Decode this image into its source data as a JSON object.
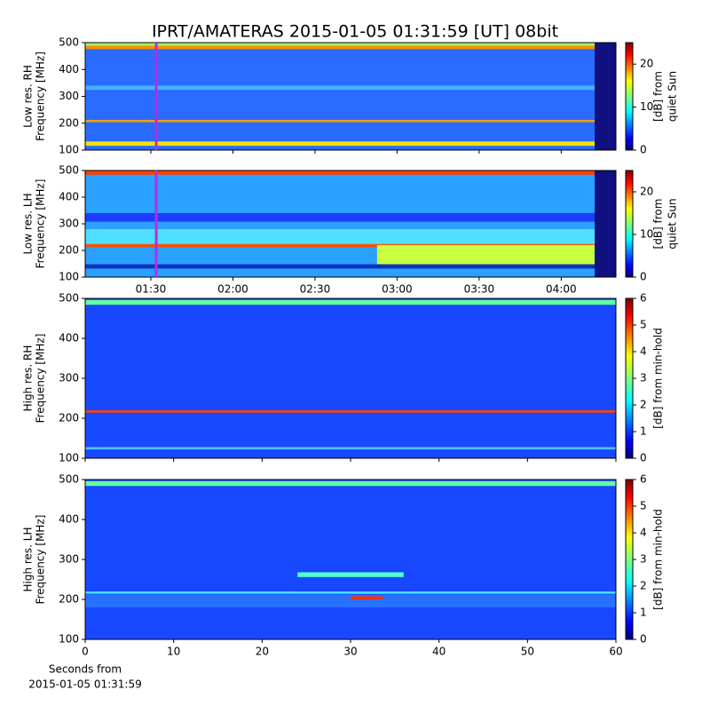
{
  "title": "IPRT/AMATERAS 2015-01-05 01:31:59 [UT]   08bit",
  "chart_data": [
    {
      "type": "heatmap",
      "ylabel": [
        "Low res. RH",
        "Frequency [MHz]"
      ],
      "ylim": [
        100,
        500
      ],
      "yticks": [
        100,
        200,
        300,
        400,
        500
      ],
      "colorbar_label": [
        "[dB] from",
        "quiet Sun"
      ],
      "clim": [
        0,
        25
      ],
      "cticks": [
        0,
        10,
        20
      ],
      "cursor_x": 91.98,
      "xlim": [
        66,
        260
      ]
    },
    {
      "type": "heatmap",
      "ylabel": [
        "Low res. LH",
        "Frequency [MHz]"
      ],
      "ylim": [
        100,
        500
      ],
      "yticks": [
        100,
        200,
        300,
        400,
        500
      ],
      "colorbar_label": [
        "[dB] from",
        "quiet Sun"
      ],
      "clim": [
        0,
        25
      ],
      "cticks": [
        0,
        10,
        20
      ],
      "cursor_x": 91.98,
      "xlim": [
        66,
        260
      ],
      "xticks": [
        {
          "value": 90,
          "label": "01:30"
        },
        {
          "value": 120,
          "label": "02:00"
        },
        {
          "value": 150,
          "label": "02:30"
        },
        {
          "value": 180,
          "label": "03:00"
        },
        {
          "value": 210,
          "label": "03:30"
        },
        {
          "value": 240,
          "label": "04:00"
        }
      ]
    },
    {
      "type": "heatmap",
      "ylabel": [
        "High res. RH",
        "Frequency [MHz]"
      ],
      "ylim": [
        100,
        500
      ],
      "yticks": [
        100,
        200,
        300,
        400,
        500
      ],
      "colorbar_label": [
        "[dB] from min-hold"
      ],
      "clim": [
        0,
        6
      ],
      "cticks": [
        0,
        1,
        2,
        3,
        4,
        5,
        6
      ],
      "xlim": [
        0,
        60
      ]
    },
    {
      "type": "heatmap",
      "ylabel": [
        "High res. LH",
        "Frequency [MHz]"
      ],
      "ylim": [
        100,
        500
      ],
      "yticks": [
        100,
        200,
        300,
        400,
        500
      ],
      "colorbar_label": [
        "[dB] from min-hold"
      ],
      "clim": [
        0,
        6
      ],
      "cticks": [
        0,
        1,
        2,
        3,
        4,
        5,
        6
      ],
      "xlim": [
        0,
        60
      ],
      "xticks": [
        0,
        10,
        20,
        30,
        40,
        50,
        60
      ],
      "xlabel": [
        "Seconds from",
        "2015-01-05 01:31:59"
      ]
    }
  ]
}
